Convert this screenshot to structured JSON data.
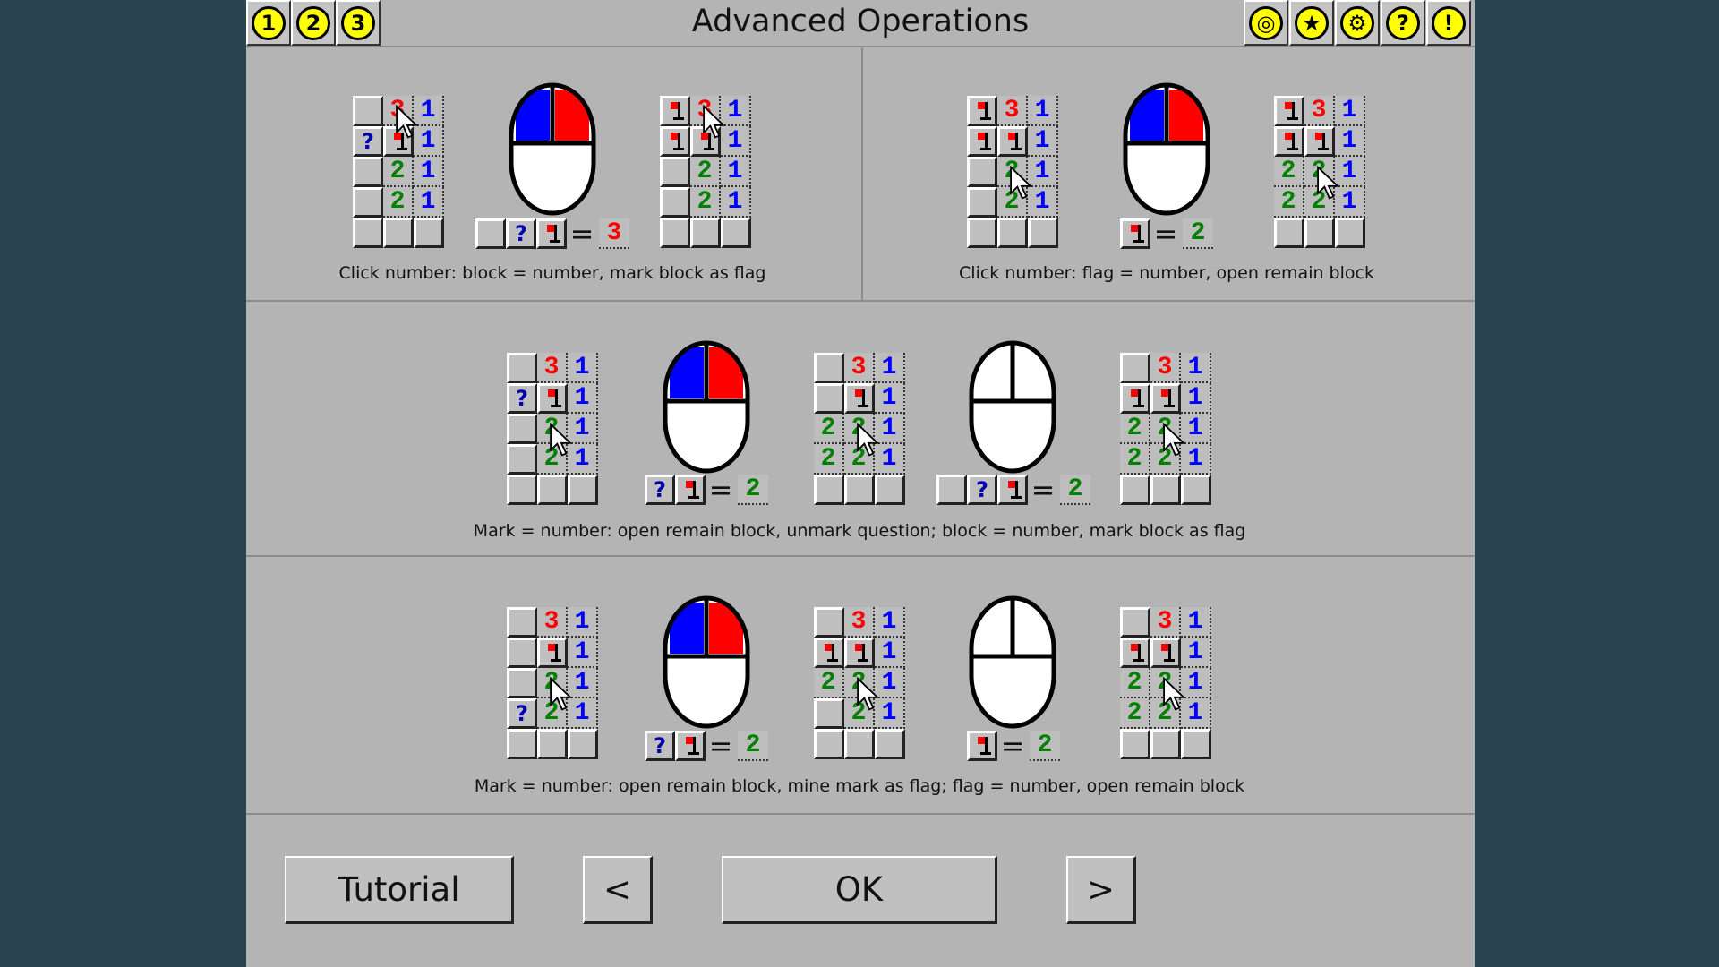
{
  "header": {
    "title": "Advanced Operations",
    "left_buttons": [
      {
        "label": "1",
        "icon": "number-1-icon"
      },
      {
        "label": "2",
        "icon": "number-2-icon"
      },
      {
        "label": "3",
        "icon": "number-3-icon"
      }
    ],
    "right_buttons": [
      {
        "icon": "camera-icon",
        "glyph": "◎"
      },
      {
        "icon": "star-icon",
        "glyph": "★"
      },
      {
        "icon": "gear-icon",
        "glyph": "⚙"
      },
      {
        "icon": "help-icon",
        "glyph": "?"
      },
      {
        "icon": "info-icon",
        "glyph": "!"
      }
    ]
  },
  "colors": {
    "1": "#0000ff",
    "2": "#008000",
    "3": "#ff0000",
    "mouse_left": "#0000ff",
    "mouse_right": "#ff0000"
  },
  "sections": {
    "s1l": {
      "caption": "Click number: block = number, mark block as flag",
      "before": [
        [
          "b",
          "3*",
          "1"
        ],
        [
          "?",
          "f",
          "1"
        ],
        [
          "b",
          "2",
          "1"
        ],
        [
          "b",
          "2",
          "1"
        ],
        [
          "b",
          "b",
          "b"
        ]
      ],
      "mouse": "both",
      "equation": {
        "cells": [
          "b",
          "?",
          "f"
        ],
        "equals": "=",
        "result": "3"
      },
      "after": [
        [
          "f",
          "3*",
          "1"
        ],
        [
          "f",
          "f",
          "1"
        ],
        [
          "b",
          "2",
          "1"
        ],
        [
          "b",
          "2",
          "1"
        ],
        [
          "b",
          "b",
          "b"
        ]
      ]
    },
    "s1r": {
      "caption": "Click number: flag = number, open remain block",
      "before": [
        [
          "f",
          "3",
          "1"
        ],
        [
          "f",
          "f",
          "1"
        ],
        [
          "b",
          "2*",
          "1"
        ],
        [
          "b",
          "2",
          "1"
        ],
        [
          "b",
          "b",
          "b"
        ]
      ],
      "mouse": "both",
      "equation": {
        "cells": [
          "f"
        ],
        "equals": "=",
        "result": "2"
      },
      "after": [
        [
          "f",
          "3",
          "1"
        ],
        [
          "f",
          "f",
          "1"
        ],
        [
          "2",
          "2*",
          "1"
        ],
        [
          "2",
          "2",
          "1"
        ],
        [
          "b",
          "b",
          "b"
        ]
      ]
    },
    "s2": {
      "caption": "Mark = number: open remain block, unmark question; block = number, mark block as flag",
      "g1": [
        [
          "b",
          "3",
          "1"
        ],
        [
          "?",
          "f",
          "1"
        ],
        [
          "b",
          "2*",
          "1"
        ],
        [
          "b",
          "2",
          "1"
        ],
        [
          "b",
          "b",
          "b"
        ]
      ],
      "mouse1": "both",
      "eq1": {
        "cells": [
          "?",
          "f"
        ],
        "equals": "=",
        "result": "2"
      },
      "g2": [
        [
          "b",
          "3",
          "1"
        ],
        [
          "b",
          "f",
          "1"
        ],
        [
          "2",
          "2*",
          "1"
        ],
        [
          "2",
          "2",
          "1"
        ],
        [
          "b",
          "b",
          "b"
        ]
      ],
      "mouse2": "none",
      "eq2": {
        "cells": [
          "b",
          "?",
          "f"
        ],
        "equals": "=",
        "result": "2"
      },
      "g3": [
        [
          "b",
          "3",
          "1"
        ],
        [
          "f",
          "f",
          "1"
        ],
        [
          "2",
          "2*",
          "1"
        ],
        [
          "2",
          "2",
          "1"
        ],
        [
          "b",
          "b",
          "b"
        ]
      ]
    },
    "s3": {
      "caption": "Mark = number: open remain block, mine mark as flag; flag = number, open remain block",
      "g1": [
        [
          "b",
          "3",
          "1"
        ],
        [
          "b",
          "f",
          "1"
        ],
        [
          "b",
          "2*",
          "1"
        ],
        [
          "?",
          "2",
          "1"
        ],
        [
          "b",
          "b",
          "b"
        ]
      ],
      "mouse1": "both",
      "eq1": {
        "cells": [
          "?",
          "f"
        ],
        "equals": "=",
        "result": "2"
      },
      "g2": [
        [
          "b",
          "3",
          "1"
        ],
        [
          "f",
          "f",
          "1"
        ],
        [
          "2",
          "2*",
          "1"
        ],
        [
          "b",
          "2",
          "1"
        ],
        [
          "b",
          "b",
          "b"
        ]
      ],
      "mouse2": "none",
      "eq2": {
        "cells": [
          "f"
        ],
        "equals": "=",
        "result": "2"
      },
      "g3": [
        [
          "b",
          "3",
          "1"
        ],
        [
          "f",
          "f",
          "1"
        ],
        [
          "2",
          "2*",
          "1"
        ],
        [
          "2",
          "2",
          "1"
        ],
        [
          "b",
          "b",
          "b"
        ]
      ]
    }
  },
  "footer": {
    "tutorial": "Tutorial",
    "prev": "<",
    "ok": "OK",
    "next": ">"
  }
}
